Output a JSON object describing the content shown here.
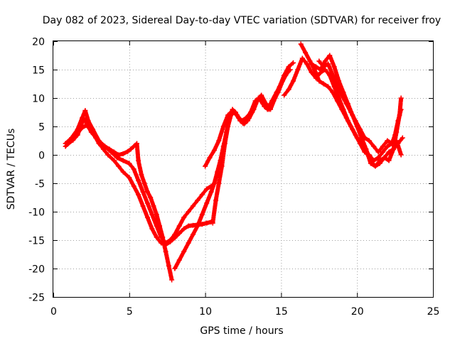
{
  "chart_data": {
    "type": "scatter",
    "title": "Day 082 of 2023, Sidereal Day-to-day VTEC variation (SDTVAR) for receiver froy",
    "xlabel": "GPS time / hours",
    "ylabel": "SDTVAR / TECUs",
    "xlim": [
      0,
      25
    ],
    "ylim": [
      -25,
      20
    ],
    "xticks": [
      "0",
      "5",
      "10",
      "15",
      "20",
      "25"
    ],
    "yticks": [
      "-25",
      "-20",
      "-15",
      "-10",
      "-5",
      "0",
      "5",
      "10",
      "15",
      "20"
    ],
    "grid": true,
    "marker_color": "#ff0000",
    "series": [
      {
        "points": [
          [
            0.8,
            1.5
          ],
          [
            1.0,
            2.0
          ],
          [
            1.3,
            2.6
          ],
          [
            1.6,
            3.5
          ],
          [
            1.8,
            5.0
          ],
          [
            2.0,
            6.5
          ],
          [
            2.2,
            5.5
          ],
          [
            2.5,
            4.0
          ],
          [
            2.8,
            3.0
          ],
          [
            3.0,
            2.0
          ],
          [
            3.3,
            1.0
          ],
          [
            3.6,
            0.0
          ],
          [
            4.0,
            -1.0
          ],
          [
            4.3,
            -2.0
          ],
          [
            4.6,
            -3.0
          ],
          [
            5.0,
            -4.0
          ],
          [
            5.3,
            -5.5
          ],
          [
            5.6,
            -7.0
          ],
          [
            5.9,
            -9.0
          ],
          [
            6.2,
            -11.0
          ],
          [
            6.5,
            -13.0
          ],
          [
            6.8,
            -14.5
          ],
          [
            7.1,
            -15.5
          ],
          [
            7.4,
            -15.8
          ],
          [
            7.7,
            -15.3
          ],
          [
            8.0,
            -14.6
          ],
          [
            8.3,
            -13.8
          ],
          [
            8.6,
            -13.0
          ],
          [
            8.9,
            -12.5
          ],
          [
            9.2,
            -12.4
          ],
          [
            9.5,
            -12.3
          ],
          [
            9.8,
            -12.2
          ],
          [
            10.1,
            -12.0
          ],
          [
            10.4,
            -11.8
          ]
        ]
      },
      {
        "points": [
          [
            0.8,
            2.0
          ],
          [
            1.2,
            3.0
          ],
          [
            1.6,
            4.5
          ],
          [
            1.9,
            6.5
          ],
          [
            2.1,
            7.8
          ],
          [
            2.3,
            6.0
          ],
          [
            2.6,
            4.5
          ],
          [
            3.0,
            2.5
          ],
          [
            3.4,
            1.5
          ],
          [
            3.8,
            0.5
          ],
          [
            4.2,
            -0.5
          ],
          [
            4.6,
            -1.0
          ],
          [
            5.0,
            -1.5
          ],
          [
            5.3,
            -2.5
          ],
          [
            5.6,
            -4.5
          ],
          [
            5.9,
            -6.5
          ],
          [
            6.2,
            -8.5
          ],
          [
            6.5,
            -10.5
          ],
          [
            6.8,
            -12.5
          ],
          [
            7.1,
            -14.5
          ],
          [
            7.4,
            -15.5
          ],
          [
            7.7,
            -15.0
          ],
          [
            8.0,
            -14.0
          ],
          [
            8.3,
            -12.5
          ],
          [
            8.6,
            -11.0
          ],
          [
            8.9,
            -10.0
          ],
          [
            9.2,
            -9.0
          ],
          [
            9.5,
            -8.0
          ],
          [
            9.8,
            -7.0
          ],
          [
            10.1,
            -6.0
          ],
          [
            10.4,
            -5.5
          ]
        ]
      },
      {
        "points": [
          [
            1.0,
            2.3
          ],
          [
            1.3,
            3.0
          ],
          [
            1.6,
            3.8
          ],
          [
            1.9,
            4.8
          ],
          [
            2.2,
            5.2
          ],
          [
            2.5,
            4.2
          ],
          [
            2.8,
            3.0
          ],
          [
            3.1,
            2.0
          ],
          [
            3.4,
            1.5
          ],
          [
            3.7,
            1.0
          ],
          [
            4.0,
            0.5
          ],
          [
            4.3,
            0.0
          ],
          [
            4.6,
            0.2
          ],
          [
            4.9,
            0.6
          ],
          [
            5.1,
            1.0
          ],
          [
            5.3,
            1.5
          ],
          [
            5.5,
            2.0
          ],
          [
            5.6,
            -1.0
          ],
          [
            5.8,
            -3.5
          ],
          [
            6.0,
            -5.0
          ],
          [
            6.2,
            -6.5
          ],
          [
            6.4,
            -7.5
          ],
          [
            6.6,
            -9.0
          ],
          [
            6.8,
            -10.5
          ],
          [
            7.0,
            -12.5
          ],
          [
            7.2,
            -14.5
          ],
          [
            7.4,
            -17.0
          ],
          [
            7.6,
            -19.5
          ],
          [
            7.8,
            -22.0
          ]
        ]
      },
      {
        "points": [
          [
            8.0,
            -20.0
          ],
          [
            8.3,
            -18.5
          ],
          [
            8.6,
            -17.0
          ],
          [
            8.9,
            -15.5
          ],
          [
            9.2,
            -14.0
          ],
          [
            9.5,
            -12.5
          ],
          [
            9.8,
            -10.5
          ],
          [
            10.1,
            -8.5
          ],
          [
            10.4,
            -6.5
          ],
          [
            10.6,
            -5.0
          ],
          [
            10.8,
            -3.0
          ],
          [
            11.0,
            -1.0
          ],
          [
            11.2,
            1.5
          ],
          [
            11.4,
            4.0
          ],
          [
            11.6,
            6.5
          ],
          [
            11.8,
            8.0
          ],
          [
            12.0,
            7.5
          ],
          [
            12.3,
            6.0
          ],
          [
            12.6,
            5.5
          ],
          [
            12.9,
            6.5
          ],
          [
            13.2,
            8.0
          ],
          [
            13.5,
            10.0
          ],
          [
            13.8,
            9.0
          ],
          [
            14.1,
            8.0
          ],
          [
            14.4,
            9.5
          ],
          [
            14.7,
            11.0
          ],
          [
            15.0,
            12.5
          ],
          [
            15.3,
            14.0
          ],
          [
            15.6,
            15.0
          ]
        ]
      },
      {
        "points": [
          [
            10.5,
            -12.0
          ],
          [
            10.7,
            -8.0
          ],
          [
            10.9,
            -5.0
          ],
          [
            11.1,
            -2.0
          ],
          [
            11.3,
            2.0
          ],
          [
            11.5,
            5.0
          ],
          [
            11.7,
            7.0
          ],
          [
            11.9,
            7.5
          ],
          [
            12.2,
            6.5
          ],
          [
            12.5,
            5.5
          ],
          [
            12.8,
            6.0
          ],
          [
            13.1,
            7.5
          ],
          [
            13.4,
            9.5
          ],
          [
            13.7,
            10.5
          ],
          [
            14.0,
            9.0
          ],
          [
            14.3,
            8.0
          ],
          [
            14.6,
            10.0
          ],
          [
            14.9,
            12.0
          ],
          [
            15.2,
            14.0
          ],
          [
            15.5,
            15.5
          ],
          [
            15.8,
            16.2
          ]
        ]
      },
      {
        "points": [
          [
            10.0,
            -2.0
          ],
          [
            10.3,
            -0.5
          ],
          [
            10.6,
            0.8
          ],
          [
            10.9,
            2.5
          ],
          [
            11.2,
            5.0
          ],
          [
            11.5,
            7.0
          ],
          [
            11.8,
            7.8
          ],
          [
            12.1,
            7.0
          ],
          [
            12.4,
            6.0
          ],
          [
            12.7,
            6.5
          ],
          [
            13.0,
            7.5
          ],
          [
            13.3,
            9.5
          ],
          [
            13.6,
            10.0
          ],
          [
            13.9,
            8.5
          ],
          [
            14.2,
            8.0
          ],
          [
            14.5,
            9.5
          ],
          [
            14.8,
            11.0
          ],
          [
            15.1,
            13.0
          ],
          [
            15.4,
            14.5
          ]
        ]
      },
      {
        "points": [
          [
            15.2,
            10.5
          ],
          [
            15.5,
            11.5
          ],
          [
            15.8,
            13.0
          ],
          [
            16.1,
            15.0
          ],
          [
            16.4,
            17.0
          ],
          [
            16.7,
            16.0
          ],
          [
            17.0,
            14.5
          ],
          [
            17.3,
            13.5
          ],
          [
            17.6,
            14.5
          ],
          [
            17.9,
            15.0
          ],
          [
            18.2,
            14.0
          ],
          [
            18.5,
            12.0
          ],
          [
            18.8,
            10.0
          ],
          [
            19.1,
            8.0
          ],
          [
            19.4,
            6.0
          ],
          [
            19.7,
            4.5
          ],
          [
            20.0,
            3.0
          ],
          [
            20.3,
            2.0
          ],
          [
            20.6,
            0.5
          ],
          [
            20.9,
            -1.0
          ],
          [
            21.2,
            -2.0
          ],
          [
            21.5,
            -1.5
          ],
          [
            21.8,
            -0.5
          ],
          [
            22.1,
            0.5
          ],
          [
            22.4,
            1.0
          ],
          [
            22.7,
            2.0
          ],
          [
            23.0,
            3.0
          ]
        ]
      },
      {
        "points": [
          [
            16.3,
            19.5
          ],
          [
            16.6,
            18.0
          ],
          [
            16.9,
            16.5
          ],
          [
            17.2,
            15.0
          ],
          [
            17.5,
            13.0
          ],
          [
            17.8,
            12.5
          ],
          [
            18.1,
            12.0
          ],
          [
            18.4,
            11.0
          ],
          [
            18.7,
            9.5
          ],
          [
            19.0,
            8.0
          ],
          [
            19.3,
            6.5
          ],
          [
            19.6,
            5.0
          ],
          [
            19.9,
            3.5
          ],
          [
            20.2,
            2.0
          ],
          [
            20.5,
            0.5
          ],
          [
            20.8,
            0.0
          ],
          [
            21.1,
            -1.0
          ],
          [
            21.4,
            -0.5
          ],
          [
            21.7,
            0.5
          ],
          [
            22.0,
            1.5
          ],
          [
            22.3,
            2.0
          ],
          [
            22.6,
            2.5
          ],
          [
            22.9,
            0.0
          ]
        ]
      },
      {
        "points": [
          [
            17.0,
            16.0
          ],
          [
            17.3,
            15.5
          ],
          [
            17.6,
            15.0
          ],
          [
            17.9,
            16.5
          ],
          [
            18.2,
            17.5
          ],
          [
            18.5,
            15.5
          ],
          [
            18.8,
            13.0
          ],
          [
            19.1,
            11.0
          ],
          [
            19.4,
            9.0
          ],
          [
            19.7,
            7.0
          ],
          [
            20.0,
            5.0
          ],
          [
            20.3,
            3.0
          ],
          [
            20.6,
            1.0
          ],
          [
            20.9,
            -1.5
          ],
          [
            21.2,
            -2.0
          ],
          [
            21.5,
            -1.0
          ],
          [
            21.8,
            -0.5
          ],
          [
            22.1,
            -1.0
          ],
          [
            22.4,
            1.0
          ],
          [
            22.6,
            4.0
          ],
          [
            22.8,
            7.0
          ],
          [
            22.9,
            10.0
          ]
        ]
      },
      {
        "points": [
          [
            17.5,
            16.5
          ],
          [
            17.8,
            15.5
          ],
          [
            18.1,
            16.0
          ],
          [
            18.4,
            14.0
          ],
          [
            18.7,
            12.0
          ],
          [
            19.0,
            10.5
          ],
          [
            19.3,
            9.0
          ],
          [
            19.6,
            7.5
          ],
          [
            19.9,
            6.0
          ],
          [
            20.2,
            4.5
          ],
          [
            20.5,
            3.0
          ],
          [
            20.8,
            2.5
          ],
          [
            21.1,
            1.5
          ],
          [
            21.4,
            0.5
          ],
          [
            21.7,
            1.5
          ],
          [
            22.0,
            2.5
          ],
          [
            22.3,
            2.0
          ],
          [
            22.5,
            3.5
          ],
          [
            22.7,
            6.0
          ],
          [
            22.9,
            8.0
          ]
        ]
      }
    ]
  }
}
